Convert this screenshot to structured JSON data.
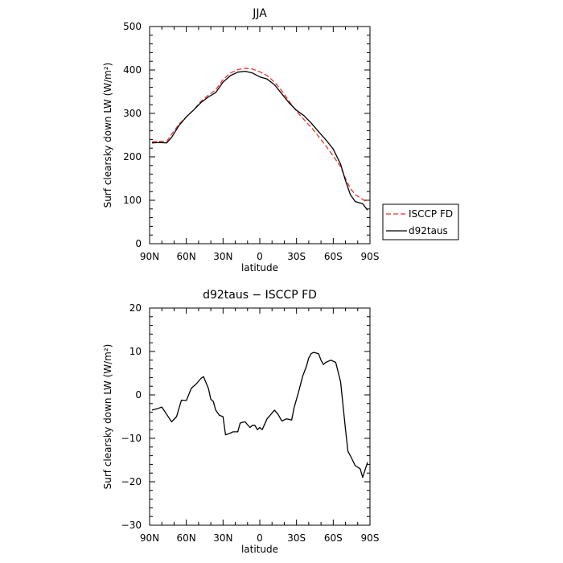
{
  "chart_data": [
    {
      "type": "line",
      "title": "JJA",
      "xlabel": "latitude",
      "ylabel": "Surf clearsky down LW (W/m²)",
      "xlim": [
        90,
        -90
      ],
      "ylim": [
        0,
        500
      ],
      "xticks": [
        90,
        60,
        30,
        0,
        -30,
        -60,
        -90
      ],
      "xtick_labels": [
        "90N",
        "60N",
        "30N",
        "0",
        "30S",
        "60S",
        "90S"
      ],
      "yticks": [
        0,
        100,
        200,
        300,
        400,
        500
      ],
      "ytick_labels": [
        "0",
        "100",
        "200",
        "300",
        "400",
        "500"
      ],
      "legend": "outside right",
      "grid": false,
      "series": [
        {
          "name": "ISCCP FD",
          "color": "#e8332a",
          "style": "dashed",
          "x": [
            88,
            82,
            76,
            72,
            66,
            60,
            54,
            48,
            42,
            36,
            30,
            24,
            18,
            12,
            6,
            0,
            -6,
            -12,
            -18,
            -24,
            -30,
            -36,
            -42,
            -48,
            -54,
            -60,
            -66,
            -70,
            -74,
            -78,
            -84,
            -88
          ],
          "y": [
            235,
            236,
            236,
            252,
            275,
            292,
            308,
            328,
            342,
            354,
            378,
            393,
            401,
            404,
            402,
            396,
            387,
            372,
            352,
            328,
            305,
            286,
            268,
            247,
            225,
            202,
            177,
            150,
            127,
            113,
            102,
            95
          ]
        },
        {
          "name": "d92taus",
          "color": "#000000",
          "style": "solid",
          "x": [
            88,
            82,
            76,
            72,
            66,
            60,
            54,
            48,
            42,
            36,
            30,
            24,
            18,
            12,
            6,
            0,
            -6,
            -12,
            -18,
            -24,
            -30,
            -36,
            -42,
            -48,
            -54,
            -60,
            -66,
            -70,
            -74,
            -78,
            -84,
            -88
          ],
          "y": [
            232,
            233,
            232,
            245,
            272,
            292,
            308,
            325,
            338,
            348,
            372,
            387,
            395,
            397,
            393,
            384,
            379,
            366,
            345,
            324,
            307,
            295,
            278,
            258,
            239,
            218,
            183,
            145,
            113,
            97,
            92,
            77
          ]
        }
      ]
    },
    {
      "type": "line",
      "title": "d92taus − ISCCP FD",
      "xlabel": "latitude",
      "ylabel": "Surf clearsky down LW (W/m²)",
      "xlim": [
        90,
        -90
      ],
      "ylim": [
        -30,
        20
      ],
      "xticks": [
        90,
        60,
        30,
        0,
        -30,
        -60,
        -90
      ],
      "xtick_labels": [
        "90N",
        "60N",
        "30N",
        "0",
        "30S",
        "60S",
        "90S"
      ],
      "yticks": [
        -30,
        -20,
        -10,
        0,
        10,
        20
      ],
      "ytick_labels": [
        "−30",
        "−20",
        "−10",
        "0",
        "10",
        "20"
      ],
      "grid": false,
      "series": [
        {
          "color": "#000000",
          "style": "solid",
          "x": [
            88,
            84,
            80,
            76,
            72,
            68,
            64,
            60,
            56,
            52,
            48,
            46,
            42,
            40,
            38,
            36,
            33,
            30,
            28,
            24,
            22,
            18,
            16,
            14,
            12,
            8,
            6,
            4,
            2,
            0,
            -2,
            -6,
            -9,
            -12,
            -15,
            -18,
            -22,
            -26,
            -28,
            -32,
            -35,
            -38,
            -40,
            -42,
            -44,
            -48,
            -50,
            -52,
            -54,
            -58,
            -62,
            -66,
            -70,
            -72,
            -74,
            -78,
            -82,
            -84,
            -88
          ],
          "y": [
            -3.5,
            -3.2,
            -2.8,
            -4.5,
            -6.2,
            -5.0,
            -1.2,
            -1.3,
            1.5,
            2.5,
            3.8,
            4.2,
            1.5,
            -1.0,
            -1.5,
            -3.5,
            -4.7,
            -5.0,
            -9.2,
            -8.8,
            -8.5,
            -8.5,
            -6.5,
            -6.3,
            -6.2,
            -7.5,
            -7.0,
            -7.0,
            -8.0,
            -7.5,
            -8.0,
            -5.5,
            -4.5,
            -3.5,
            -4.5,
            -6.0,
            -5.5,
            -5.8,
            -3.0,
            1.0,
            4.3,
            6.5,
            8.5,
            9.5,
            9.8,
            9.5,
            8.0,
            7.0,
            7.5,
            8.0,
            7.5,
            3.0,
            -8.0,
            -13.0,
            -14.0,
            -16.3,
            -17.0,
            -19.0,
            -15.5
          ]
        }
      ]
    }
  ]
}
